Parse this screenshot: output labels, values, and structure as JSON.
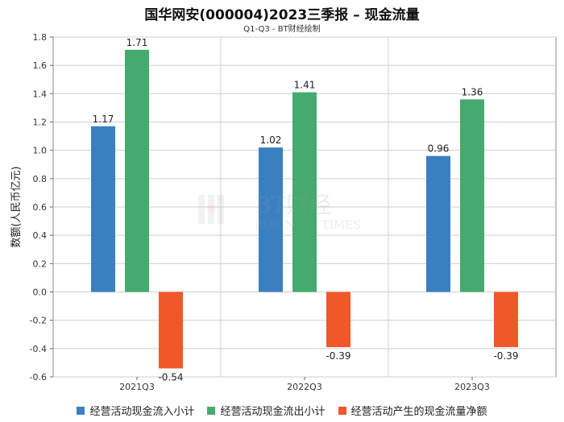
{
  "title": "国华网安(000004)2023三季报 – 现金流量",
  "subtitle": "Q1-Q3 - BT财经绘制",
  "watermark": {
    "brand": "BT财经",
    "sub": "BUSINESS TIMES"
  },
  "chart_data": {
    "type": "bar",
    "categories": [
      "2021Q3",
      "2022Q3",
      "2023Q3"
    ],
    "series": [
      {
        "name": "经营活动现金流入小计",
        "values": [
          1.17,
          1.02,
          0.96
        ],
        "color": "#3a80c0"
      },
      {
        "name": "经营活动现金流出小计",
        "values": [
          1.71,
          1.41,
          1.36
        ],
        "color": "#45aa6e"
      },
      {
        "name": "经营活动产生的现金流量净额",
        "values": [
          -0.54,
          -0.39,
          -0.39
        ],
        "color": "#f0582a"
      }
    ],
    "xlabel": "",
    "ylabel": "数额(人民币亿元)",
    "ylim": [
      -0.6,
      1.8
    ],
    "yticks": [
      "-0.6",
      "-0.4",
      "-0.2",
      "0.0",
      "0.2",
      "0.4",
      "0.6",
      "0.8",
      "1.0",
      "1.2",
      "1.4",
      "1.6",
      "1.8"
    ],
    "grid": true,
    "legend_position": "bottom"
  }
}
